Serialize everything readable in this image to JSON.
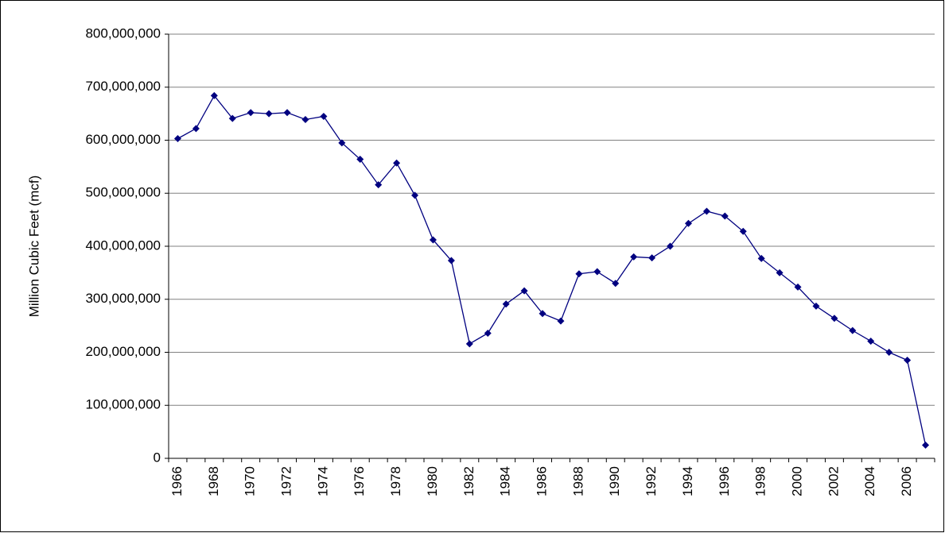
{
  "chart_data": {
    "type": "line",
    "y_label": "Million Cubic Feet (mcf)",
    "categories": [
      "1966",
      null,
      "1968",
      null,
      "1970",
      null,
      "1972",
      null,
      "1974",
      null,
      "1976",
      null,
      "1978",
      null,
      "1980",
      null,
      "1982",
      null,
      "1984",
      null,
      "1986",
      null,
      "1988",
      null,
      "1990",
      null,
      "1992",
      null,
      "1994",
      null,
      "1996",
      null,
      "1998",
      null,
      "2000",
      null,
      "2002",
      null,
      "2004",
      null,
      "2006",
      null
    ],
    "series": [
      {
        "color": "#000080",
        "values": [
          603000000,
          622000000,
          684000000,
          641000000,
          652000000,
          650000000,
          652000000,
          639000000,
          645000000,
          595000000,
          564000000,
          516000000,
          557000000,
          496000000,
          412000000,
          373000000,
          216000000,
          236000000,
          291000000,
          316000000,
          273000000,
          259000000,
          348000000,
          352000000,
          330000000,
          380000000,
          378000000,
          400000000,
          443000000,
          466000000,
          457000000,
          428000000,
          377000000,
          350000000,
          323000000,
          287000000,
          264000000,
          241000000,
          221000000,
          200000000,
          185000000,
          25000000
        ]
      }
    ],
    "ylim": [
      0,
      800000000
    ],
    "yticks": [
      0,
      {
        "value": 100000000,
        "label": "100,000,000"
      },
      {
        "value": 200000000,
        "label": "200,000,000"
      },
      {
        "value": 300000000,
        "label": "300,000,000"
      },
      {
        "value": 400000000,
        "label": "400,000,000"
      },
      {
        "value": 500000000,
        "label": "500,000,000"
      },
      {
        "value": 600000000,
        "label": "600,000,000"
      },
      {
        "value": 700000000,
        "label": "700,000,000"
      },
      {
        "value": 800000000,
        "label": "800,000,000"
      }
    ],
    "grid": true
  }
}
